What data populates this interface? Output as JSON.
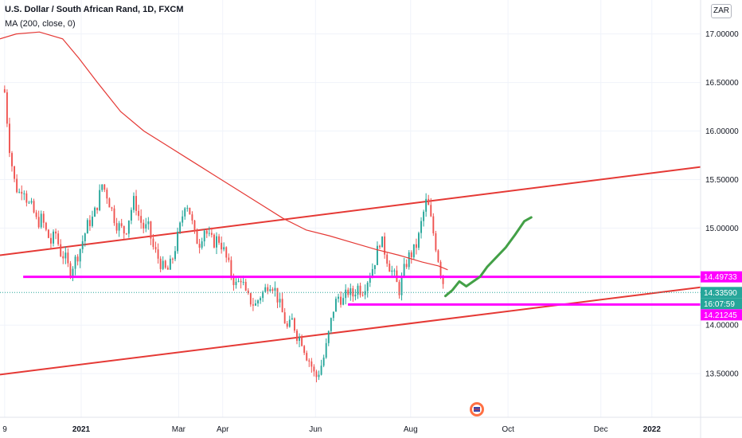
{
  "header": {
    "title": "U.S. Dollar / South African Rand, 1D, FXCM",
    "ma_label": "MA (200, close, 0)",
    "currency_button": "ZAR"
  },
  "colors": {
    "bull": "#26a69a",
    "bear": "#ef5350",
    "ma": "#e53935",
    "channel": "#e53935",
    "support": "#ff00ff",
    "projection": "#43a047",
    "last_price": "#26a69a"
  },
  "chart_data": {
    "type": "candlestick",
    "title": "U.S. Dollar / South African Rand, 1D, FXCM",
    "ylim": [
      13.05,
      17.35
    ],
    "y_ticks": [
      "17.00000",
      "16.50000",
      "16.00000",
      "15.50000",
      "15.00000",
      "14.00000",
      "13.50000"
    ],
    "x_ticks": [
      {
        "label": "9",
        "x": 0
      },
      {
        "label": "2021",
        "x": 33
      },
      {
        "label": "Mar",
        "x": 75
      },
      {
        "label": "Apr",
        "x": 94
      },
      {
        "label": "Jun",
        "x": 134
      },
      {
        "label": "Aug",
        "x": 175
      },
      {
        "label": "Oct",
        "x": 217
      },
      {
        "label": "Dec",
        "x": 257
      },
      {
        "label": "2022",
        "x": 279
      }
    ],
    "xlim": [
      -2,
      300
    ],
    "close_path": [
      [
        0,
        16.4
      ],
      [
        2,
        15.85
      ],
      [
        4,
        15.5
      ],
      [
        6,
        15.35
      ],
      [
        8,
        15.45
      ],
      [
        10,
        15.25
      ],
      [
        12,
        15.2
      ],
      [
        14,
        15.05
      ],
      [
        16,
        15.1
      ],
      [
        18,
        14.95
      ],
      [
        20,
        14.85
      ],
      [
        22,
        14.95
      ],
      [
        24,
        14.75
      ],
      [
        26,
        14.7
      ],
      [
        28,
        14.55
      ],
      [
        30,
        14.65
      ],
      [
        32,
        14.75
      ],
      [
        34,
        14.9
      ],
      [
        36,
        15.05
      ],
      [
        38,
        15.1
      ],
      [
        40,
        15.25
      ],
      [
        42,
        15.45
      ],
      [
        44,
        15.35
      ],
      [
        46,
        15.2
      ],
      [
        48,
        15.05
      ],
      [
        50,
        15.0
      ],
      [
        52,
        14.95
      ],
      [
        54,
        15.15
      ],
      [
        56,
        15.3
      ],
      [
        58,
        15.1
      ],
      [
        60,
        15.0
      ],
      [
        62,
        15.0
      ],
      [
        64,
        14.8
      ],
      [
        66,
        14.7
      ],
      [
        68,
        14.6
      ],
      [
        70,
        14.55
      ],
      [
        72,
        14.65
      ],
      [
        74,
        14.85
      ],
      [
        76,
        15.05
      ],
      [
        78,
        15.3
      ],
      [
        80,
        15.15
      ],
      [
        82,
        14.9
      ],
      [
        84,
        14.85
      ],
      [
        86,
        15.0
      ],
      [
        88,
        14.9
      ],
      [
        90,
        14.85
      ],
      [
        92,
        14.9
      ],
      [
        94,
        14.8
      ],
      [
        96,
        14.65
      ],
      [
        98,
        14.5
      ],
      [
        100,
        14.4
      ],
      [
        102,
        14.5
      ],
      [
        104,
        14.3
      ],
      [
        106,
        14.25
      ],
      [
        108,
        14.2
      ],
      [
        110,
        14.3
      ],
      [
        112,
        14.35
      ],
      [
        114,
        14.45
      ],
      [
        116,
        14.4
      ],
      [
        118,
        14.25
      ],
      [
        120,
        14.1
      ],
      [
        122,
        13.95
      ],
      [
        124,
        14.05
      ],
      [
        126,
        13.9
      ],
      [
        128,
        13.85
      ],
      [
        130,
        13.7
      ],
      [
        132,
        13.6
      ],
      [
        134,
        13.45
      ],
      [
        136,
        13.55
      ],
      [
        138,
        13.7
      ],
      [
        140,
        13.95
      ],
      [
        142,
        14.2
      ],
      [
        144,
        14.3
      ],
      [
        146,
        14.25
      ],
      [
        148,
        14.35
      ],
      [
        150,
        14.3
      ],
      [
        152,
        14.4
      ],
      [
        154,
        14.35
      ],
      [
        156,
        14.45
      ],
      [
        158,
        14.55
      ],
      [
        160,
        14.7
      ],
      [
        162,
        14.9
      ],
      [
        164,
        14.75
      ],
      [
        166,
        14.6
      ],
      [
        168,
        14.5
      ],
      [
        170,
        14.35
      ],
      [
        172,
        14.55
      ],
      [
        174,
        14.7
      ],
      [
        176,
        14.75
      ],
      [
        178,
        14.85
      ],
      [
        180,
        15.1
      ],
      [
        182,
        15.3
      ],
      [
        184,
        15.05
      ],
      [
        186,
        14.8
      ],
      [
        188,
        14.55
      ],
      [
        190,
        14.34
      ]
    ],
    "ma_path": [
      [
        -2,
        16.95
      ],
      [
        5,
        17.0
      ],
      [
        15,
        17.02
      ],
      [
        25,
        16.95
      ],
      [
        32,
        16.75
      ],
      [
        40,
        16.5
      ],
      [
        50,
        16.2
      ],
      [
        60,
        16.0
      ],
      [
        70,
        15.85
      ],
      [
        80,
        15.7
      ],
      [
        90,
        15.55
      ],
      [
        100,
        15.4
      ],
      [
        110,
        15.25
      ],
      [
        120,
        15.1
      ],
      [
        130,
        14.98
      ],
      [
        140,
        14.92
      ],
      [
        150,
        14.85
      ],
      [
        160,
        14.78
      ],
      [
        170,
        14.72
      ],
      [
        180,
        14.65
      ],
      [
        187,
        14.61
      ],
      [
        191,
        14.57
      ]
    ],
    "channel_upper": [
      [
        -2,
        14.72
      ],
      [
        300,
        15.63
      ]
    ],
    "channel_lower": [
      [
        -2,
        13.49
      ],
      [
        300,
        14.39
      ]
    ],
    "support_levels": [
      {
        "price": 14.49733,
        "label": "14.49733",
        "x_start": 8
      },
      {
        "price": 14.21245,
        "label": "14.21245",
        "x_start": 148
      }
    ],
    "projection_path": [
      [
        190,
        14.3
      ],
      [
        193,
        14.36
      ],
      [
        196,
        14.45
      ],
      [
        199,
        14.4
      ],
      [
        202,
        14.45
      ],
      [
        205,
        14.5
      ],
      [
        208,
        14.6
      ],
      [
        212,
        14.7
      ],
      [
        216,
        14.8
      ],
      [
        220,
        14.93
      ],
      [
        224,
        15.07
      ],
      [
        227,
        15.11
      ]
    ],
    "last_price": {
      "value": "14.33590",
      "countdown": "16:07:59",
      "price": 14.3359
    }
  }
}
